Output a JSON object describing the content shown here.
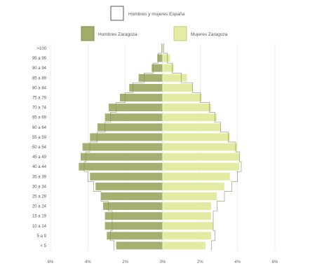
{
  "chart_data": {
    "type": "bar",
    "orientation": "horizontal",
    "stacked_mirror": true,
    "legend": [
      {
        "name": "Hombres y mujeres España",
        "swatch": "#ffffff",
        "stroke": "#555555"
      },
      {
        "name": "Hombres Zaragoza",
        "swatch": "#9fac6a",
        "stroke": "#7d8a4e"
      },
      {
        "name": "Mujeres Zaragoza",
        "swatch": "#e5eca4",
        "stroke": "#c2ca7e"
      }
    ],
    "categories": [
      "< 5",
      "5 a 9",
      "10 a 14",
      "15 a 19",
      "20 a 24",
      "25 a 29",
      "30 a 34",
      "35 a 39",
      "40 a 44",
      "45 a 49",
      "50 a 54",
      "55 a 59",
      "60 a 64",
      "65 a 69",
      "70 a 74",
      "75 a 79",
      "80 a 84",
      "85 a 89",
      "90 a 94",
      "95 a 99",
      ">100"
    ],
    "series": [
      {
        "name": "Hombres Zaragoza",
        "color": "#a5b070",
        "side": "left",
        "values": [
          2.5,
          3.0,
          3.1,
          3.1,
          3.2,
          3.3,
          3.6,
          3.9,
          4.5,
          4.4,
          4.3,
          3.9,
          3.5,
          3.1,
          2.9,
          2.3,
          1.8,
          1.3,
          0.6,
          0.3,
          0.05
        ]
      },
      {
        "name": "Mujeres Zaragoza",
        "color": "#e3eaa2",
        "side": "right",
        "values": [
          2.3,
          2.6,
          2.7,
          2.6,
          2.6,
          2.9,
          3.3,
          3.6,
          4.1,
          4.1,
          4.0,
          3.6,
          3.1,
          2.9,
          2.6,
          2.1,
          1.6,
          1.3,
          0.6,
          0.4,
          0.05
        ]
      },
      {
        "name": "Hombres y mujeres España",
        "color": "none",
        "side": "both",
        "values": [
          2.6,
          2.8,
          2.7,
          2.7,
          2.9,
          3.3,
          3.7,
          4.0,
          4.2,
          4.1,
          3.9,
          3.5,
          3.1,
          2.8,
          2.5,
          2.0,
          1.6,
          1.0,
          0.5,
          0.25,
          0.05
        ]
      }
    ],
    "xticks": [
      "6%",
      "4%",
      "2%",
      "0%",
      "2%",
      "4%",
      "6%"
    ],
    "xlim": [
      -6,
      6
    ]
  }
}
